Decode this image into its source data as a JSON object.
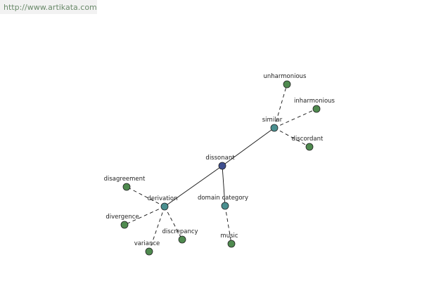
{
  "header": {
    "url": "http://www.artikata.com"
  },
  "nodes": [
    {
      "label": "dissonant",
      "color": "#3f4f8f"
    },
    {
      "label": "similar",
      "color": "#4a8f8f"
    },
    {
      "label": "unharmonious",
      "color": "#4f8a4f"
    },
    {
      "label": "inharmonious",
      "color": "#4f8a4f"
    },
    {
      "label": "discordant",
      "color": "#4f8a4f"
    },
    {
      "label": "derivation",
      "color": "#4a8f8f"
    },
    {
      "label": "disagreement",
      "color": "#4f8a4f"
    },
    {
      "label": "divergence",
      "color": "#4f8a4f"
    },
    {
      "label": "variance",
      "color": "#4f8a4f"
    },
    {
      "label": "discrepancy",
      "color": "#4f8a4f"
    },
    {
      "label": "domain category",
      "color": "#4a8f8f"
    },
    {
      "label": "music",
      "color": "#4f8a4f"
    }
  ],
  "edges": [
    {
      "from": 0,
      "to": 1,
      "dashed": false
    },
    {
      "from": 0,
      "to": 5,
      "dashed": false
    },
    {
      "from": 0,
      "to": 10,
      "dashed": false
    },
    {
      "from": 1,
      "to": 2,
      "dashed": true
    },
    {
      "from": 1,
      "to": 3,
      "dashed": true
    },
    {
      "from": 1,
      "to": 4,
      "dashed": true
    },
    {
      "from": 5,
      "to": 6,
      "dashed": true
    },
    {
      "from": 5,
      "to": 7,
      "dashed": true
    },
    {
      "from": 5,
      "to": 8,
      "dashed": true
    },
    {
      "from": 5,
      "to": 9,
      "dashed": true
    },
    {
      "from": 10,
      "to": 11,
      "dashed": true
    }
  ]
}
